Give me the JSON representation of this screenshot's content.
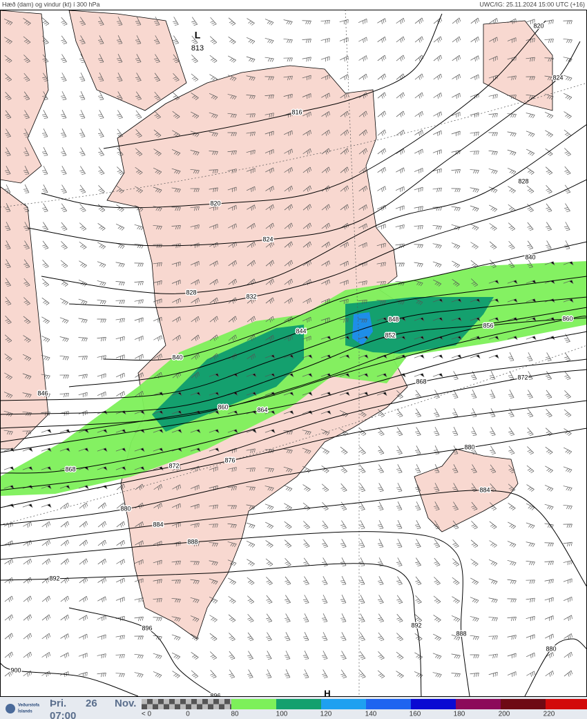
{
  "header": {
    "title": "Hæð (dam) og vindur (kt) í 300 hPa",
    "run": "UWC/IG: 25.11.2024 15:00 UTC (+16)"
  },
  "map": {
    "low": {
      "letter": "L",
      "value": "813"
    },
    "high": {
      "letter": "H"
    },
    "contour_labels": [
      "816",
      "820",
      "824",
      "828",
      "832",
      "840",
      "844",
      "848",
      "852",
      "856",
      "860",
      "864",
      "868",
      "872",
      "876",
      "880",
      "884",
      "888",
      "892",
      "896",
      "900",
      "880",
      "820",
      "824",
      "828",
      "840",
      "860",
      "868",
      "872",
      "880",
      "884",
      "888",
      "892",
      "896",
      "846"
    ]
  },
  "footer": {
    "day": "Þri.",
    "date": "26",
    "month": "Nov.",
    "time": "07:00",
    "logo": [
      "Veðurstofa",
      "Íslands"
    ]
  },
  "legend": {
    "labels": [
      "< 0",
      "0",
      "80",
      "100",
      "120",
      "140",
      "160",
      "180",
      "200",
      "220"
    ],
    "colors": [
      "#7df05a",
      "#14a06e",
      "#1ea0f0",
      "#1e64f0",
      "#0a0ad2",
      "#8c0a5a",
      "#6e0a14",
      "#d20a0a"
    ]
  }
}
